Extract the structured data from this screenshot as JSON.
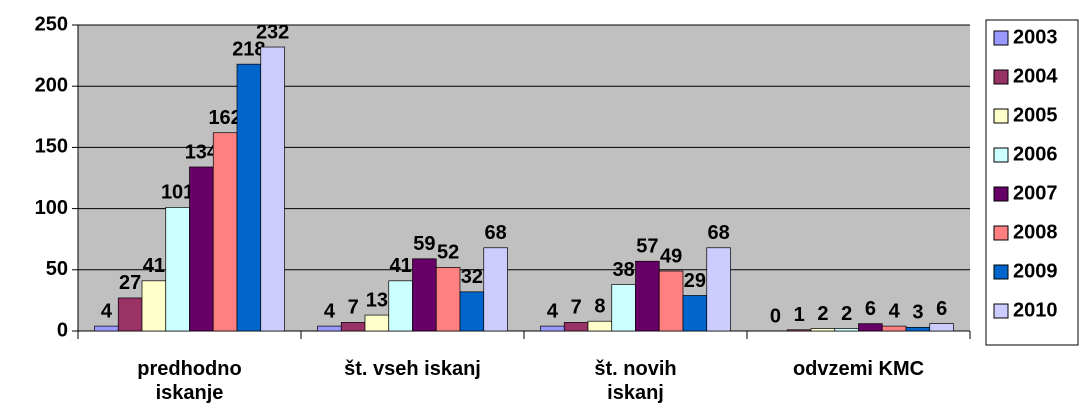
{
  "chart_data": {
    "type": "bar",
    "categories": [
      "predhodno iskanje",
      "št. vseh iskanj",
      "št. novih iskanj",
      "odvzemi KMC"
    ],
    "series": [
      {
        "name": "2003",
        "color": "#9999ff",
        "values": [
          4,
          4,
          4,
          0
        ]
      },
      {
        "name": "2004",
        "color": "#993366",
        "values": [
          27,
          7,
          7,
          1
        ]
      },
      {
        "name": "2005",
        "color": "#ffffcc",
        "values": [
          41,
          13,
          8,
          2
        ]
      },
      {
        "name": "2006",
        "color": "#ccffff",
        "values": [
          101,
          41,
          38,
          2
        ]
      },
      {
        "name": "2007",
        "color": "#660066",
        "values": [
          134,
          59,
          57,
          6
        ]
      },
      {
        "name": "2008",
        "color": "#ff8080",
        "values": [
          162,
          52,
          49,
          4
        ]
      },
      {
        "name": "2009",
        "color": "#0066cc",
        "values": [
          218,
          32,
          29,
          3
        ]
      },
      {
        "name": "2010",
        "color": "#ccccff",
        "values": [
          232,
          68,
          68,
          6
        ]
      }
    ],
    "ylim": [
      0,
      250
    ],
    "yticks": [
      0,
      50,
      100,
      150,
      200,
      250
    ],
    "grid": true,
    "legend": "right"
  }
}
